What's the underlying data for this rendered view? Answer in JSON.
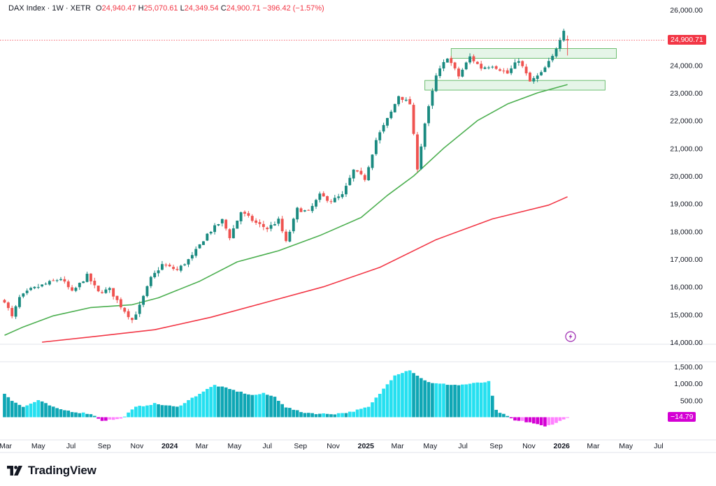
{
  "legend": {
    "symbol": "DAX Index · 1W · XETR",
    "open_label": "O",
    "open": "24,940.47",
    "high_label": "H",
    "high": "25,070.61",
    "low_label": "L",
    "low": "24,349.54",
    "close_label": "C",
    "close": "24,900.71",
    "change": "−396.42 (−1.57%)"
  },
  "brand": {
    "name": "TradingView",
    "logo_icon": "tradingview-logo-icon"
  },
  "colors": {
    "up": "#26a69a",
    "down": "#ef5350",
    "up_dark": "#1a8a80",
    "ma_short": "#4caf50",
    "ma_long": "#f23645",
    "osc_pos": "#26e0f0",
    "osc_pos_dark": "#0fa7b5",
    "osc_neg": "#ff80ff",
    "osc_neg_dark": "#d400d4",
    "zone_fill": "#e0f3e4",
    "zone_stroke": "#4caf50"
  },
  "chart_data": {
    "type": "candlestick",
    "title": "DAX Index · 1W · XETR",
    "y_ticks": [
      "26,000.00",
      "25,000.00",
      "24,000.00",
      "23,000.00",
      "22,000.00",
      "21,000.00",
      "20,000.00",
      "19,000.00",
      "18,000.00",
      "17,000.00",
      "16,000.00",
      "15,000.00",
      "14,000.00"
    ],
    "y_tick_values": [
      26000,
      25000,
      24000,
      23000,
      22000,
      21000,
      20000,
      19000,
      18000,
      17000,
      16000,
      15000,
      14000
    ],
    "ylim": [
      14000,
      26000
    ],
    "x_ticks": [
      {
        "label": "Mar",
        "date": "2023-03-01"
      },
      {
        "label": "May",
        "date": "2023-05-01"
      },
      {
        "label": "Jul",
        "date": "2023-07-01"
      },
      {
        "label": "Sep",
        "date": "2023-09-01"
      },
      {
        "label": "Nov",
        "date": "2023-11-01"
      },
      {
        "label": "2024",
        "date": "2024-01-01",
        "bold": true
      },
      {
        "label": "Mar",
        "date": "2024-03-01"
      },
      {
        "label": "May",
        "date": "2024-05-01"
      },
      {
        "label": "Jul",
        "date": "2024-07-01"
      },
      {
        "label": "Sep",
        "date": "2024-09-01"
      },
      {
        "label": "Nov",
        "date": "2024-11-01"
      },
      {
        "label": "2025",
        "date": "2025-01-01",
        "bold": true
      },
      {
        "label": "Mar",
        "date": "2025-03-01"
      },
      {
        "label": "May",
        "date": "2025-05-01"
      },
      {
        "label": "Jul",
        "date": "2025-07-01"
      },
      {
        "label": "Sep",
        "date": "2025-09-01"
      },
      {
        "label": "Nov",
        "date": "2025-11-01"
      },
      {
        "label": "2026",
        "date": "2026-01-01",
        "bold": true
      },
      {
        "label": "Mar",
        "date": "2026-03-01"
      },
      {
        "label": "May",
        "date": "2026-05-01"
      },
      {
        "label": "Jul",
        "date": "2026-07-01"
      }
    ],
    "last_price": 24900.71,
    "last_price_label": "24,900.71",
    "close_path": [
      [
        "2023-02-27",
        15500
      ],
      [
        "2023-03-13",
        14900
      ],
      [
        "2023-03-27",
        15600
      ],
      [
        "2023-04-17",
        15900
      ],
      [
        "2023-05-15",
        16100
      ],
      [
        "2023-06-12",
        16300
      ],
      [
        "2023-07-03",
        15800
      ],
      [
        "2023-07-31",
        16400
      ],
      [
        "2023-08-21",
        15800
      ],
      [
        "2023-09-11",
        15900
      ],
      [
        "2023-10-02",
        15300
      ],
      [
        "2023-10-23",
        14800
      ],
      [
        "2023-11-06",
        15300
      ],
      [
        "2023-11-27",
        16300
      ],
      [
        "2023-12-18",
        16800
      ],
      [
        "2024-01-15",
        16600
      ],
      [
        "2024-02-12",
        17100
      ],
      [
        "2024-03-11",
        17900
      ],
      [
        "2024-04-08",
        18400
      ],
      [
        "2024-04-22",
        17800
      ],
      [
        "2024-05-13",
        18700
      ],
      [
        "2024-06-10",
        18300
      ],
      [
        "2024-07-01",
        18100
      ],
      [
        "2024-07-22",
        18400
      ],
      [
        "2024-08-05",
        17600
      ],
      [
        "2024-08-26",
        18800
      ],
      [
        "2024-09-16",
        18700
      ],
      [
        "2024-10-07",
        19300
      ],
      [
        "2024-10-28",
        19100
      ],
      [
        "2024-11-18",
        19300
      ],
      [
        "2024-12-09",
        20200
      ],
      [
        "2024-12-30",
        19900
      ],
      [
        "2025-01-20",
        21300
      ],
      [
        "2025-02-17",
        22300
      ],
      [
        "2025-03-03",
        22900
      ],
      [
        "2025-03-24",
        22600
      ],
      [
        "2025-04-07",
        20300
      ],
      [
        "2025-04-21",
        21900
      ],
      [
        "2025-05-12",
        23600
      ],
      [
        "2025-06-02",
        24300
      ],
      [
        "2025-06-23",
        23600
      ],
      [
        "2025-07-14",
        24300
      ],
      [
        "2025-08-04",
        23900
      ],
      [
        "2025-08-25",
        24000
      ],
      [
        "2025-09-22",
        23700
      ],
      [
        "2025-10-13",
        24200
      ],
      [
        "2025-11-03",
        23400
      ],
      [
        "2025-11-24",
        23700
      ],
      [
        "2025-12-15",
        24300
      ],
      [
        "2026-01-05",
        25300
      ],
      [
        "2026-01-12",
        24900.71
      ]
    ],
    "ma_short_path": [
      [
        "2023-02-27",
        14250
      ],
      [
        "2023-04-03",
        14550
      ],
      [
        "2023-05-29",
        14950
      ],
      [
        "2023-08-07",
        15250
      ],
      [
        "2023-10-23",
        15350
      ],
      [
        "2023-12-11",
        15600
      ],
      [
        "2024-02-26",
        16200
      ],
      [
        "2024-05-06",
        16900
      ],
      [
        "2024-07-22",
        17300
      ],
      [
        "2024-10-07",
        17850
      ],
      [
        "2024-12-23",
        18500
      ],
      [
        "2025-02-10",
        19300
      ],
      [
        "2025-03-31",
        20000
      ],
      [
        "2025-05-26",
        21000
      ],
      [
        "2025-07-28",
        22000
      ],
      [
        "2025-09-22",
        22600
      ],
      [
        "2025-11-17",
        23000
      ],
      [
        "2026-01-12",
        23300
      ]
    ],
    "ma_long_path": [
      [
        "2023-05-08",
        14000
      ],
      [
        "2023-08-21",
        14220
      ],
      [
        "2023-12-04",
        14450
      ],
      [
        "2024-03-18",
        14900
      ],
      [
        "2024-07-01",
        15450
      ],
      [
        "2024-10-14",
        16000
      ],
      [
        "2025-01-27",
        16700
      ],
      [
        "2025-05-12",
        17700
      ],
      [
        "2025-08-25",
        18450
      ],
      [
        "2025-12-08",
        18950
      ],
      [
        "2026-01-12",
        19250
      ]
    ],
    "zones": [
      {
        "from": "2025-06-09",
        "to": "2026-04-13",
        "low": 24250,
        "high": 24600
      },
      {
        "from": "2025-04-21",
        "to": "2026-03-23",
        "low": 23100,
        "high": 23450
      }
    ],
    "oscillator": {
      "y_ticks": [
        "1,500.00",
        "1,000.00",
        "500.00"
      ],
      "y_tick_values": [
        1500,
        1000,
        500
      ],
      "ylim": [
        -300,
        1600
      ],
      "last_value": -14.79,
      "last_value_label": "−14.79",
      "path": [
        [
          "2023-02-27",
          700
        ],
        [
          "2023-03-13",
          500
        ],
        [
          "2023-04-03",
          300
        ],
        [
          "2023-05-01",
          500
        ],
        [
          "2023-06-05",
          250
        ],
        [
          "2023-07-10",
          150
        ],
        [
          "2023-08-07",
          100
        ],
        [
          "2023-08-28",
          -100
        ],
        [
          "2023-10-02",
          -50
        ],
        [
          "2023-10-30",
          300
        ],
        [
          "2023-12-04",
          400
        ],
        [
          "2024-01-15",
          300
        ],
        [
          "2024-02-26",
          700
        ],
        [
          "2024-03-25",
          950
        ],
        [
          "2024-04-29",
          800
        ],
        [
          "2024-06-03",
          650
        ],
        [
          "2024-06-24",
          700
        ],
        [
          "2024-07-15",
          600
        ],
        [
          "2024-08-05",
          300
        ],
        [
          "2024-09-02",
          150
        ],
        [
          "2024-10-07",
          100
        ],
        [
          "2024-11-04",
          100
        ],
        [
          "2024-12-02",
          150
        ],
        [
          "2025-01-06",
          300
        ],
        [
          "2025-01-27",
          700
        ],
        [
          "2025-02-24",
          1250
        ],
        [
          "2025-03-24",
          1400
        ],
        [
          "2025-04-14",
          1150
        ],
        [
          "2025-05-05",
          1000
        ],
        [
          "2025-06-23",
          950
        ],
        [
          "2025-07-21",
          1000
        ],
        [
          "2025-08-18",
          1050
        ],
        [
          "2025-09-01",
          200
        ],
        [
          "2025-10-06",
          -100
        ],
        [
          "2025-11-03",
          -150
        ],
        [
          "2025-12-01",
          -280
        ],
        [
          "2025-12-29",
          -120
        ],
        [
          "2026-01-12",
          -14.79
        ]
      ]
    }
  },
  "icons": {
    "watermark_icon": "bolt-circle-icon"
  }
}
